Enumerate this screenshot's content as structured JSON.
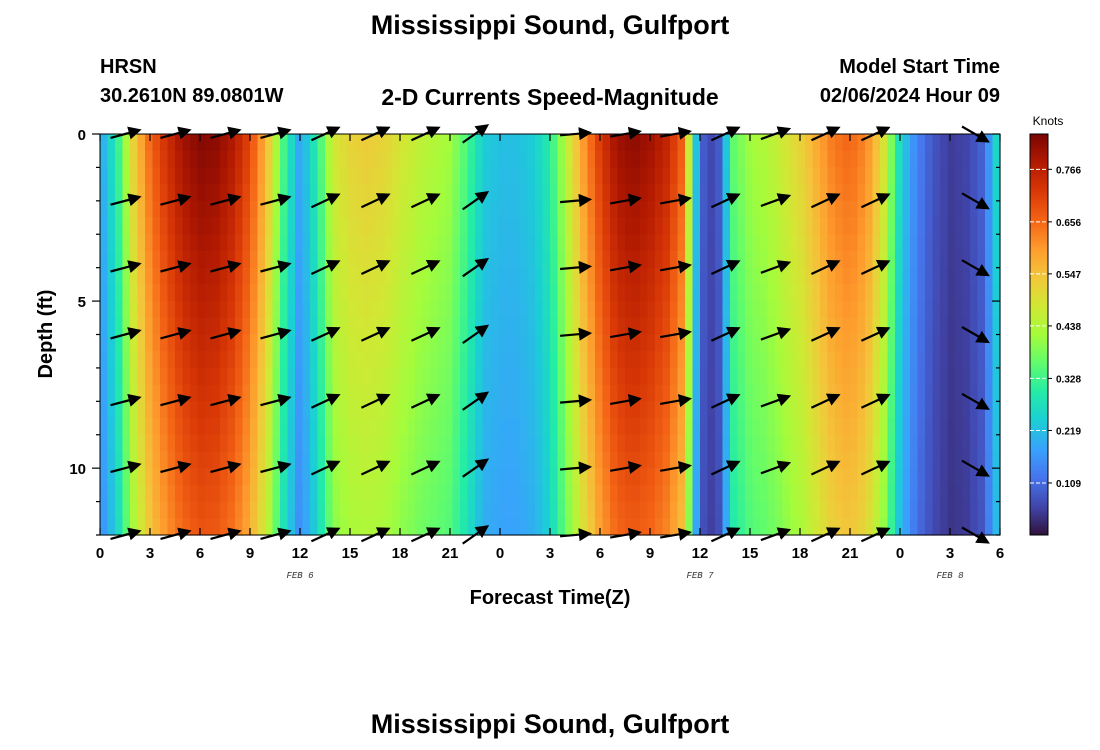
{
  "header": {
    "title": "Mississippi Sound, Gulfport",
    "station_id": "HRSN",
    "station_coords": "30.2610N  89.0801W",
    "subtitle": "2-D Currents Speed-Magnitude",
    "model_start_label": "Model Start Time",
    "model_start_value": "02/06/2024 Hour 09"
  },
  "footer": {
    "title": "Mississippi Sound, Gulfport"
  },
  "chart_data": {
    "type": "heatmap",
    "title": "2-D Currents Speed-Magnitude",
    "xlabel": "Forecast Time(Z)",
    "ylabel": "Depth (ft)",
    "x_range_hours": [
      0,
      54
    ],
    "y_range_ft": [
      0,
      12
    ],
    "x_tick_hours": [
      0,
      3,
      6,
      9,
      12,
      15,
      18,
      21,
      24,
      27,
      30,
      33,
      36,
      39,
      42,
      45,
      48,
      51,
      54
    ],
    "x_tick_labels": [
      "0",
      "3",
      "6",
      "9",
      "12",
      "15",
      "18",
      "21",
      "0",
      "3",
      "6",
      "9",
      "12",
      "15",
      "18",
      "21",
      "0",
      "3",
      "6"
    ],
    "y_tick_values": [
      0,
      5,
      10
    ],
    "y_tick_labels": [
      "0",
      "5",
      "10"
    ],
    "date_labels": [
      {
        "text": "FEB 6",
        "hour": 12
      },
      {
        "text": "FEB 7",
        "hour": 36
      },
      {
        "text": "FEB 8",
        "hour": 51
      }
    ],
    "colorbar": {
      "title": "Knots",
      "min": 0.0,
      "max": 0.84,
      "ticks": [
        0.109,
        0.219,
        0.328,
        0.438,
        0.547,
        0.656,
        0.766
      ],
      "tick_labels": [
        "0.109",
        "0.219",
        "0.328",
        "0.438",
        "0.547",
        "0.656",
        "0.766"
      ],
      "colors": [
        "#30123b",
        "#4145ab",
        "#4675ed",
        "#39a2fc",
        "#1bcfd4",
        "#24eca6",
        "#61fc6c",
        "#a4fc3b",
        "#d1e834",
        "#f3c63a",
        "#fe9b2d",
        "#f36315",
        "#d93806",
        "#b11901",
        "#7a0403"
      ]
    },
    "speed_profile": {
      "hours": [
        0,
        1,
        2,
        3,
        4,
        5,
        6,
        7,
        8,
        9,
        10,
        11,
        12,
        13,
        14,
        15,
        16,
        17,
        18,
        19,
        20,
        21,
        22,
        23,
        24,
        25,
        26,
        27,
        28,
        29,
        30,
        31,
        32,
        33,
        34,
        35,
        36,
        37,
        38,
        39,
        40,
        41,
        42,
        43,
        44,
        45,
        46,
        47,
        48,
        49,
        50,
        51,
        52,
        53,
        54
      ],
      "speed_knots": [
        0.18,
        0.3,
        0.52,
        0.66,
        0.74,
        0.8,
        0.83,
        0.82,
        0.78,
        0.7,
        0.56,
        0.34,
        0.18,
        0.3,
        0.48,
        0.52,
        0.53,
        0.52,
        0.49,
        0.46,
        0.44,
        0.42,
        0.34,
        0.24,
        0.22,
        0.22,
        0.24,
        0.3,
        0.46,
        0.6,
        0.72,
        0.8,
        0.82,
        0.8,
        0.76,
        0.66,
        0.1,
        0.05,
        0.36,
        0.42,
        0.44,
        0.48,
        0.52,
        0.58,
        0.64,
        0.66,
        0.62,
        0.5,
        0.26,
        0.14,
        0.08,
        0.05,
        0.06,
        0.1,
        0.3
      ],
      "depth_factor_surface": 1.0,
      "depth_factor_bottom": 0.82
    },
    "arrows": {
      "hours": [
        1.5,
        4.5,
        7.5,
        10.5,
        13.5,
        16.5,
        19.5,
        22.5,
        28.5,
        31.5,
        34.5,
        37.5,
        40.5,
        43.5,
        46.5,
        52.5
      ],
      "depths_ft": [
        0,
        2,
        4,
        6,
        8,
        10,
        12
      ],
      "direction_deg": [
        15,
        15,
        15,
        15,
        25,
        25,
        25,
        35,
        5,
        10,
        10,
        25,
        20,
        25,
        25,
        -30
      ],
      "length_ft_scale": [
        1.0,
        1.0,
        1.0,
        1.0,
        1.0,
        1.0,
        1.0,
        1.0,
        1.0,
        1.0,
        1.0,
        1.0,
        1.0,
        1.0,
        1.0,
        1.0
      ]
    }
  }
}
